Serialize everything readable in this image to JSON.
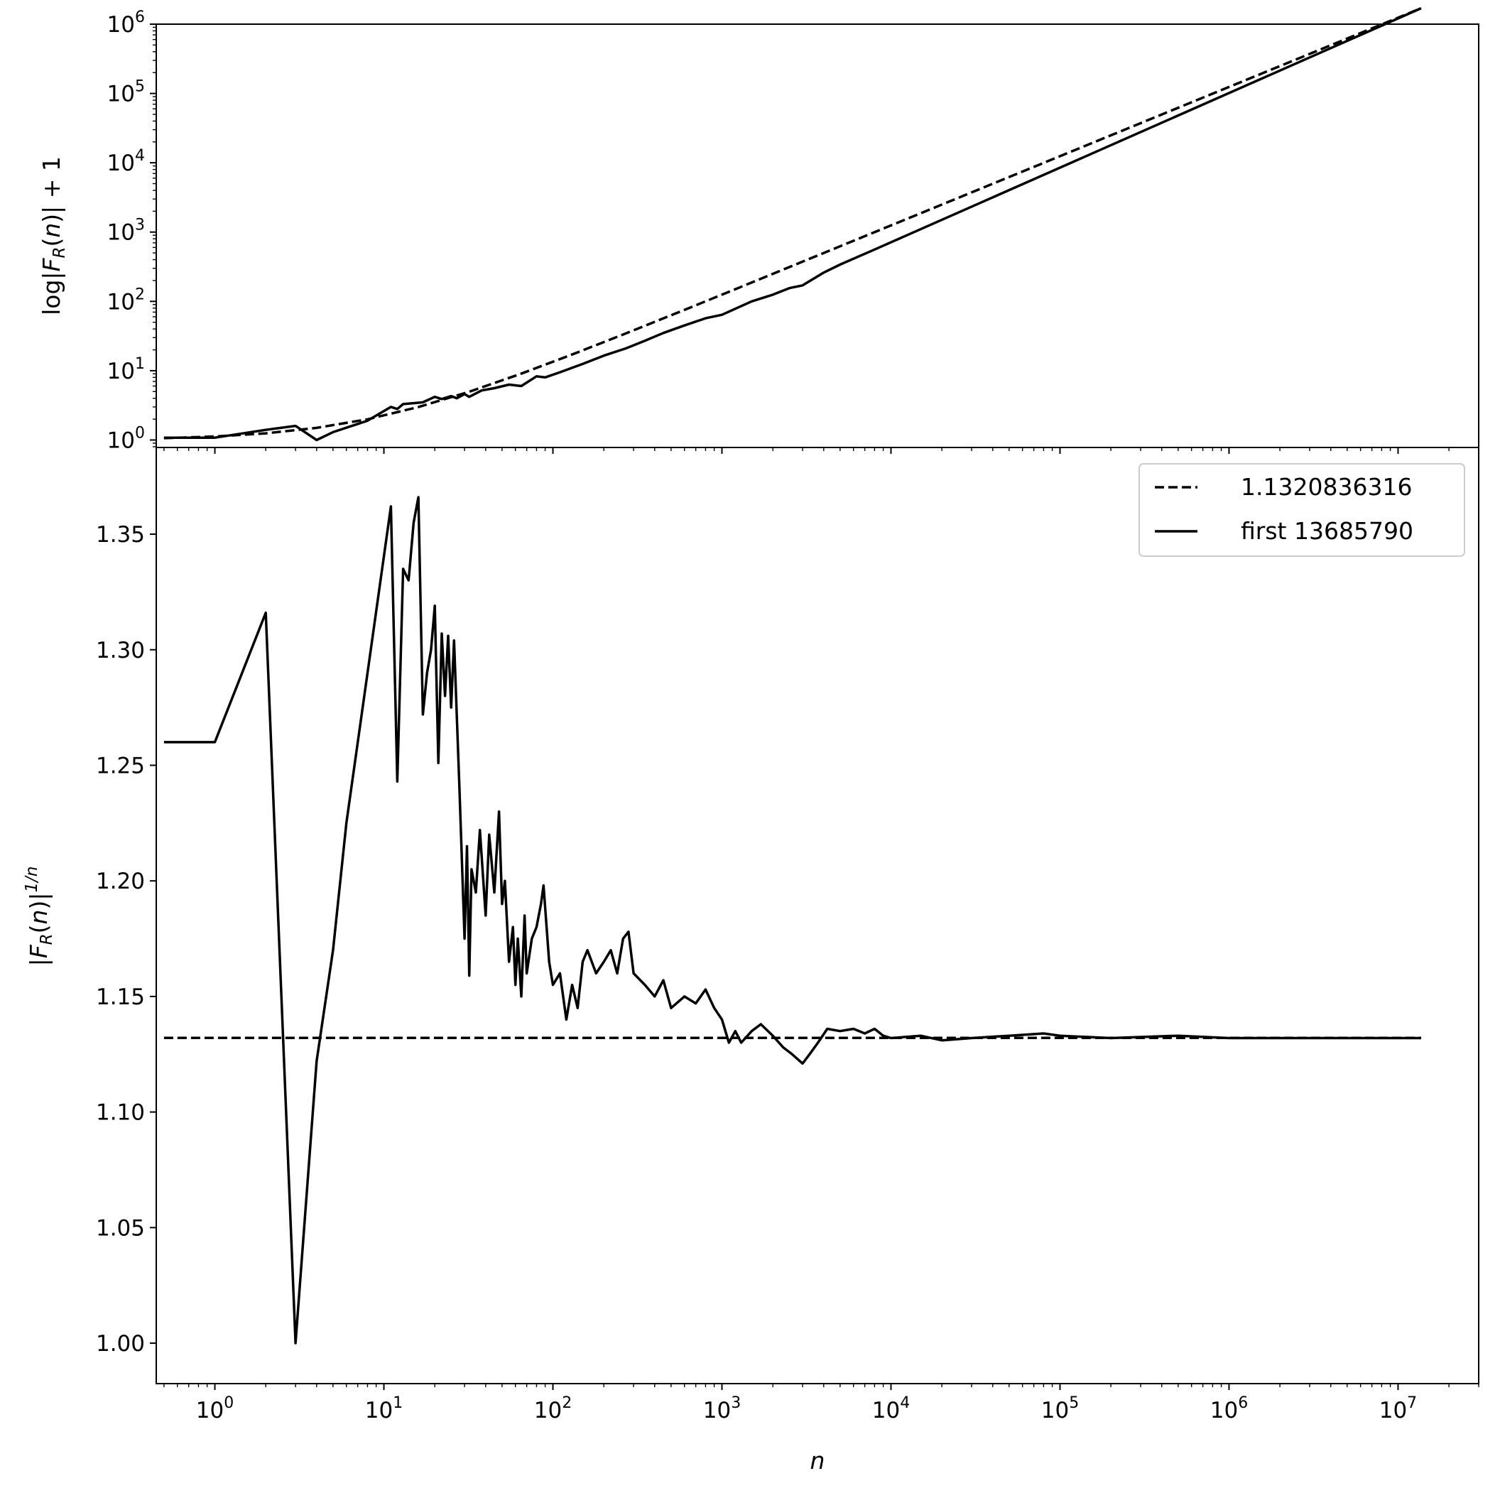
{
  "chart_data": [
    {
      "type": "line",
      "panel": "top",
      "xscale": "log",
      "yscale": "log",
      "xlim": [
        0.45,
        30000000
      ],
      "ylim": [
        0.78,
        1000000
      ],
      "xlabel": "",
      "ylabel": "log|F_R(n)| + 1",
      "ylabel_parts": {
        "pre": "log|",
        "F": "F",
        "sub": "R",
        "mid": "(",
        "n": "n",
        "post": ")| + 1"
      },
      "xtick_values": [
        1,
        10,
        100,
        1000,
        10000,
        100000,
        1000000,
        10000000
      ],
      "ytick_values": [
        1,
        10,
        100,
        1000,
        10000,
        100000,
        1000000
      ],
      "ytick_labels": [
        {
          "base": "10",
          "exp": "0"
        },
        {
          "base": "10",
          "exp": "1"
        },
        {
          "base": "10",
          "exp": "2"
        },
        {
          "base": "10",
          "exp": "3"
        },
        {
          "base": "10",
          "exp": "4"
        },
        {
          "base": "10",
          "exp": "5"
        },
        {
          "base": "10",
          "exp": "6"
        }
      ],
      "series": [
        {
          "style": "dashed",
          "x": [
            0.5,
            1,
            2,
            4,
            8,
            16,
            32,
            64,
            128,
            256,
            512,
            1024,
            13685790
          ],
          "y": [
            1.062,
            1.124,
            1.248,
            1.496,
            1.992,
            2.984,
            4.968,
            8.94,
            16.9,
            32.8,
            64.5,
            128,
            1696000
          ]
        },
        {
          "style": "solid",
          "x": [
            0.5,
            1,
            2,
            3,
            4,
            5,
            8,
            11,
            12,
            13,
            15,
            17,
            20,
            22,
            25,
            27,
            30,
            32,
            38,
            45,
            55,
            65,
            80,
            90,
            110,
            150,
            200,
            270,
            350,
            450,
            600,
            800,
            1000,
            1500,
            2000,
            2500,
            3000,
            4000,
            5000,
            8000,
            13685790
          ],
          "y": [
            1.08,
            1.08,
            1.4,
            1.6,
            1.0,
            1.3,
            1.9,
            3.0,
            2.8,
            3.3,
            3.4,
            3.5,
            4.2,
            3.9,
            4.3,
            4.0,
            4.6,
            4.2,
            5.2,
            5.6,
            6.3,
            6.0,
            8.3,
            8.0,
            9.5,
            12.5,
            16.5,
            21,
            27,
            35,
            45,
            57,
            64,
            100,
            125,
            155,
            170,
            260,
            340,
            560,
            1696000
          ]
        }
      ]
    },
    {
      "type": "line",
      "panel": "bottom",
      "xscale": "log",
      "yscale": "linear",
      "xlim": [
        0.45,
        30000000
      ],
      "ylim": [
        0.9825,
        1.3875
      ],
      "xlabel": "n",
      "ylabel": "|F_R(n)|^{1/n}",
      "ylabel_parts": {
        "pre": "|",
        "F": "F",
        "sub": "R",
        "mid": "(",
        "n": "n",
        "post": ")|",
        "sup": "1/n"
      },
      "xtick_values": [
        1,
        10,
        100,
        1000,
        10000,
        100000,
        1000000,
        10000000
      ],
      "xtick_labels": [
        {
          "base": "10",
          "exp": "0"
        },
        {
          "base": "10",
          "exp": "1"
        },
        {
          "base": "10",
          "exp": "2"
        },
        {
          "base": "10",
          "exp": "3"
        },
        {
          "base": "10",
          "exp": "4"
        },
        {
          "base": "10",
          "exp": "5"
        },
        {
          "base": "10",
          "exp": "6"
        },
        {
          "base": "10",
          "exp": "7"
        }
      ],
      "ytick_values": [
        1.0,
        1.05,
        1.1,
        1.15,
        1.2,
        1.25,
        1.3,
        1.35
      ],
      "ytick_labels": [
        "1.00",
        "1.05",
        "1.10",
        "1.15",
        "1.20",
        "1.25",
        "1.30",
        "1.35"
      ],
      "legend": {
        "position": "upper right",
        "entries": [
          {
            "label": "1.1320836316",
            "style": "dashed"
          },
          {
            "label": "first 13685790",
            "style": "solid"
          }
        ]
      },
      "series": [
        {
          "name": "1.1320836316",
          "style": "dashed",
          "x": [
            0.5,
            13685790
          ],
          "y": [
            1.1320836316,
            1.1320836316
          ]
        },
        {
          "name": "first 13685790",
          "style": "solid",
          "x": [
            0.5,
            1,
            2,
            3,
            4,
            5,
            6,
            8,
            11,
            12,
            13,
            14,
            15,
            16,
            17,
            18,
            19,
            20,
            21,
            22,
            23,
            24,
            25,
            26,
            28,
            30,
            31,
            32,
            33,
            35,
            37,
            40,
            42,
            45,
            48,
            50,
            52,
            55,
            58,
            60,
            62,
            65,
            68,
            70,
            75,
            80,
            85,
            88,
            95,
            100,
            110,
            120,
            130,
            140,
            150,
            160,
            180,
            200,
            220,
            240,
            260,
            280,
            300,
            350,
            400,
            450,
            500,
            600,
            700,
            800,
            900,
            1000,
            1100,
            1200,
            1300,
            1500,
            1700,
            2000,
            2300,
            2600,
            3000,
            3300,
            3700,
            4200,
            5000,
            6000,
            7000,
            8000,
            9000,
            10000,
            15000,
            20000,
            30000,
            50000,
            80000,
            100000,
            200000,
            500000,
            1000000,
            3000000,
            13685790
          ],
          "y": [
            1.26,
            1.26,
            1.316,
            1.0,
            1.122,
            1.17,
            1.225,
            1.29,
            1.362,
            1.243,
            1.335,
            1.33,
            1.355,
            1.366,
            1.272,
            1.29,
            1.3,
            1.319,
            1.251,
            1.307,
            1.28,
            1.306,
            1.275,
            1.304,
            1.24,
            1.175,
            1.215,
            1.159,
            1.205,
            1.195,
            1.222,
            1.185,
            1.22,
            1.195,
            1.23,
            1.19,
            1.2,
            1.165,
            1.18,
            1.155,
            1.175,
            1.15,
            1.185,
            1.16,
            1.175,
            1.18,
            1.19,
            1.198,
            1.165,
            1.155,
            1.16,
            1.14,
            1.155,
            1.145,
            1.165,
            1.17,
            1.16,
            1.165,
            1.17,
            1.16,
            1.175,
            1.178,
            1.16,
            1.155,
            1.15,
            1.157,
            1.145,
            1.15,
            1.147,
            1.153,
            1.145,
            1.14,
            1.13,
            1.135,
            1.13,
            1.135,
            1.138,
            1.133,
            1.128,
            1.125,
            1.121,
            1.125,
            1.13,
            1.136,
            1.135,
            1.136,
            1.134,
            1.136,
            1.133,
            1.132,
            1.133,
            1.131,
            1.132,
            1.133,
            1.134,
            1.133,
            1.132,
            1.133,
            1.132,
            1.132,
            1.132
          ]
        }
      ]
    }
  ]
}
